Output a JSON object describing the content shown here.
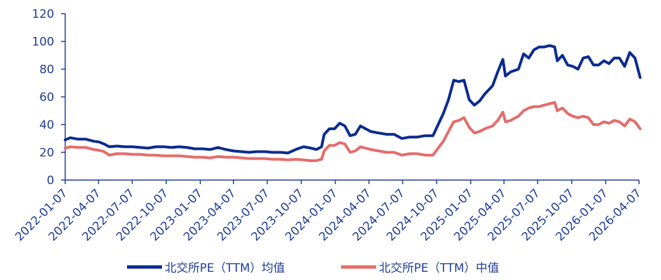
{
  "chart_data": {
    "type": "line",
    "title": "",
    "xlabel": "",
    "ylabel": "",
    "ylim": [
      0,
      120
    ],
    "yticks": [
      "0",
      "20",
      "40",
      "60",
      "80",
      "100",
      "120"
    ],
    "xticks": [
      "2022-01-07",
      "2022-04-07",
      "2022-07-07",
      "2022-10-07",
      "2023-01-07",
      "2023-04-07",
      "2023-07-07",
      "2023-10-07",
      "2024-01-07",
      "2024-04-07",
      "2024-07-07",
      "2024-10-07",
      "2025-01-07",
      "2025-04-07",
      "2025-07-07",
      "2025-10-07",
      "2026-01-07",
      "2026-04-07"
    ],
    "grid": false,
    "legend_position": "bottom",
    "series": [
      {
        "name": "北交所PE（TTM）均值",
        "color": "#0a2b8f",
        "points": [
          [
            "2022-01-07",
            29
          ],
          [
            "2022-01-21",
            30.5
          ],
          [
            "2022-02-11",
            29.5
          ],
          [
            "2022-03-04",
            29.5
          ],
          [
            "2022-03-25",
            28
          ],
          [
            "2022-04-08",
            27.5
          ],
          [
            "2022-04-22",
            26
          ],
          [
            "2022-05-06",
            24
          ],
          [
            "2022-05-27",
            24.5
          ],
          [
            "2022-06-17",
            24
          ],
          [
            "2022-07-08",
            24
          ],
          [
            "2022-07-29",
            23.5
          ],
          [
            "2022-08-19",
            23
          ],
          [
            "2022-09-09",
            24
          ],
          [
            "2022-09-30",
            24
          ],
          [
            "2022-10-21",
            23.5
          ],
          [
            "2022-11-11",
            24
          ],
          [
            "2022-12-02",
            23.5
          ],
          [
            "2022-12-23",
            22.5
          ],
          [
            "2023-01-13",
            22.5
          ],
          [
            "2023-02-03",
            22
          ],
          [
            "2023-02-24",
            23.5
          ],
          [
            "2023-03-17",
            22
          ],
          [
            "2023-04-07",
            21
          ],
          [
            "2023-04-28",
            20.5
          ],
          [
            "2023-05-19",
            20
          ],
          [
            "2023-06-09",
            20.5
          ],
          [
            "2023-06-30",
            20.5
          ],
          [
            "2023-07-21",
            20
          ],
          [
            "2023-08-11",
            20
          ],
          [
            "2023-09-01",
            19.5
          ],
          [
            "2023-09-22",
            22
          ],
          [
            "2023-10-13",
            24
          ],
          [
            "2023-11-03",
            23
          ],
          [
            "2023-11-17",
            22
          ],
          [
            "2023-12-01",
            24
          ],
          [
            "2023-12-08",
            33
          ],
          [
            "2023-12-22",
            37
          ],
          [
            "2024-01-05",
            37
          ],
          [
            "2024-01-19",
            41
          ],
          [
            "2024-02-02",
            39
          ],
          [
            "2024-02-16",
            32
          ],
          [
            "2024-03-01",
            33
          ],
          [
            "2024-03-15",
            39
          ],
          [
            "2024-03-29",
            37
          ],
          [
            "2024-04-12",
            35
          ],
          [
            "2024-05-03",
            34
          ],
          [
            "2024-05-24",
            33
          ],
          [
            "2024-06-14",
            33
          ],
          [
            "2024-07-05",
            30
          ],
          [
            "2024-07-26",
            31
          ],
          [
            "2024-08-16",
            31
          ],
          [
            "2024-09-06",
            32
          ],
          [
            "2024-09-27",
            32
          ],
          [
            "2024-10-11",
            40
          ],
          [
            "2024-10-25",
            48
          ],
          [
            "2024-11-08",
            58
          ],
          [
            "2024-11-22",
            72
          ],
          [
            "2024-12-06",
            71
          ],
          [
            "2024-12-20",
            72
          ],
          [
            "2025-01-03",
            58
          ],
          [
            "2025-01-17",
            54
          ],
          [
            "2025-01-31",
            57
          ],
          [
            "2025-02-14",
            62
          ],
          [
            "2025-03-07",
            68
          ],
          [
            "2025-03-21",
            78
          ],
          [
            "2025-04-04",
            87
          ],
          [
            "2025-04-11",
            75
          ],
          [
            "2025-04-25",
            78
          ],
          [
            "2025-05-16",
            80
          ],
          [
            "2025-05-30",
            91
          ],
          [
            "2025-06-13",
            88
          ],
          [
            "2025-06-27",
            94
          ],
          [
            "2025-07-11",
            96
          ],
          [
            "2025-07-25",
            96
          ],
          [
            "2025-08-08",
            97
          ],
          [
            "2025-08-22",
            96
          ],
          [
            "2025-08-29",
            86
          ],
          [
            "2025-09-12",
            90
          ],
          [
            "2025-09-26",
            83
          ],
          [
            "2025-10-10",
            82
          ],
          [
            "2025-10-24",
            80
          ],
          [
            "2025-11-07",
            88
          ],
          [
            "2025-11-21",
            89
          ],
          [
            "2025-12-05",
            83
          ],
          [
            "2025-12-19",
            83
          ],
          [
            "2026-01-02",
            86
          ],
          [
            "2026-01-16",
            84
          ],
          [
            "2026-01-30",
            88
          ],
          [
            "2026-02-13",
            88
          ],
          [
            "2026-02-27",
            82
          ],
          [
            "2026-03-13",
            92
          ],
          [
            "2026-03-27",
            88
          ],
          [
            "2026-04-10",
            74
          ]
        ]
      },
      {
        "name": "北交所PE（TTM）中值",
        "color": "#e46c6a",
        "points": [
          [
            "2022-01-07",
            23
          ],
          [
            "2022-01-21",
            24
          ],
          [
            "2022-02-11",
            23.5
          ],
          [
            "2022-03-04",
            23.5
          ],
          [
            "2022-03-25",
            22
          ],
          [
            "2022-04-08",
            21.5
          ],
          [
            "2022-04-22",
            20.5
          ],
          [
            "2022-05-06",
            18
          ],
          [
            "2022-05-27",
            19
          ],
          [
            "2022-06-17",
            19
          ],
          [
            "2022-07-08",
            18.5
          ],
          [
            "2022-07-29",
            18.5
          ],
          [
            "2022-08-19",
            18
          ],
          [
            "2022-09-09",
            18
          ],
          [
            "2022-09-30",
            17.5
          ],
          [
            "2022-10-21",
            17.5
          ],
          [
            "2022-11-11",
            17.5
          ],
          [
            "2022-12-02",
            17
          ],
          [
            "2022-12-23",
            16.5
          ],
          [
            "2023-01-13",
            16.5
          ],
          [
            "2023-02-03",
            16
          ],
          [
            "2023-02-24",
            17
          ],
          [
            "2023-03-17",
            16.5
          ],
          [
            "2023-04-07",
            16.5
          ],
          [
            "2023-04-28",
            16
          ],
          [
            "2023-05-19",
            15.5
          ],
          [
            "2023-06-09",
            15.5
          ],
          [
            "2023-06-30",
            15.5
          ],
          [
            "2023-07-21",
            15
          ],
          [
            "2023-08-11",
            15
          ],
          [
            "2023-09-01",
            14.5
          ],
          [
            "2023-09-22",
            15
          ],
          [
            "2023-10-13",
            14.5
          ],
          [
            "2023-11-03",
            14
          ],
          [
            "2023-11-17",
            14
          ],
          [
            "2023-12-01",
            15
          ],
          [
            "2023-12-08",
            21
          ],
          [
            "2023-12-22",
            25
          ],
          [
            "2024-01-05",
            25
          ],
          [
            "2024-01-19",
            27
          ],
          [
            "2024-02-02",
            26
          ],
          [
            "2024-02-16",
            20
          ],
          [
            "2024-03-01",
            21
          ],
          [
            "2024-03-15",
            24
          ],
          [
            "2024-03-29",
            23
          ],
          [
            "2024-04-12",
            22
          ],
          [
            "2024-05-03",
            21
          ],
          [
            "2024-05-24",
            20
          ],
          [
            "2024-06-14",
            20
          ],
          [
            "2024-07-05",
            18
          ],
          [
            "2024-07-26",
            19
          ],
          [
            "2024-08-16",
            19
          ],
          [
            "2024-09-06",
            18
          ],
          [
            "2024-09-27",
            18
          ],
          [
            "2024-10-11",
            23
          ],
          [
            "2024-10-25",
            28
          ],
          [
            "2024-11-08",
            35
          ],
          [
            "2024-11-22",
            42
          ],
          [
            "2024-12-06",
            43
          ],
          [
            "2024-12-20",
            45
          ],
          [
            "2025-01-03",
            38
          ],
          [
            "2025-01-17",
            34
          ],
          [
            "2025-01-31",
            35
          ],
          [
            "2025-02-14",
            37
          ],
          [
            "2025-03-07",
            39
          ],
          [
            "2025-03-21",
            43
          ],
          [
            "2025-04-04",
            49
          ],
          [
            "2025-04-11",
            42
          ],
          [
            "2025-04-25",
            43
          ],
          [
            "2025-05-16",
            46
          ],
          [
            "2025-05-30",
            50
          ],
          [
            "2025-06-13",
            52
          ],
          [
            "2025-06-27",
            53
          ],
          [
            "2025-07-11",
            53
          ],
          [
            "2025-07-25",
            54
          ],
          [
            "2025-08-08",
            55
          ],
          [
            "2025-08-22",
            56
          ],
          [
            "2025-08-29",
            50
          ],
          [
            "2025-09-12",
            52
          ],
          [
            "2025-09-26",
            48
          ],
          [
            "2025-10-10",
            46
          ],
          [
            "2025-10-24",
            45
          ],
          [
            "2025-11-07",
            46
          ],
          [
            "2025-11-21",
            45
          ],
          [
            "2025-12-05",
            40
          ],
          [
            "2025-12-19",
            40
          ],
          [
            "2026-01-02",
            42
          ],
          [
            "2026-01-16",
            41
          ],
          [
            "2026-01-30",
            43
          ],
          [
            "2026-02-13",
            42
          ],
          [
            "2026-02-27",
            39
          ],
          [
            "2026-03-13",
            44
          ],
          [
            "2026-03-27",
            42
          ],
          [
            "2026-04-10",
            37
          ]
        ]
      }
    ]
  }
}
